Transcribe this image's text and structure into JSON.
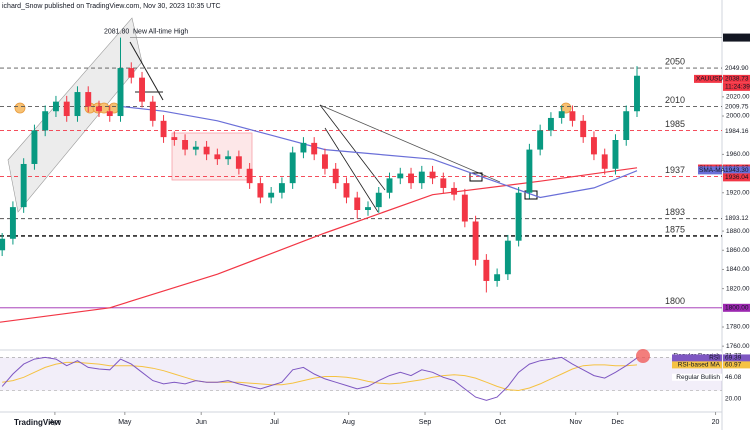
{
  "header": "ichard_Snow published on TradingView.com, Nov 30, 2023 10:35 UTC",
  "brand": "TradingView",
  "chart_data": {
    "type": "candlestick",
    "symbol": "XAUUSD",
    "countdown": "11:24:39",
    "x": [
      0,
      1,
      2,
      3,
      4,
      5,
      6,
      7,
      8,
      9,
      10,
      11,
      12,
      13,
      14,
      15,
      16,
      17,
      18,
      19,
      20,
      21,
      22,
      23,
      24,
      25,
      26,
      27,
      28,
      29,
      30,
      31,
      32,
      33,
      34,
      35,
      36,
      37,
      38,
      39,
      40,
      41,
      42,
      43,
      44,
      45,
      46,
      47,
      48,
      49,
      50,
      51,
      52,
      53,
      54,
      55,
      56,
      57,
      58,
      59
    ],
    "open": [
      1860,
      1872,
      1905,
      1950,
      1985,
      2005,
      2015,
      2000,
      2025,
      2010,
      2005,
      2000,
      2050,
      2040,
      2015,
      1995,
      1978,
      1975,
      1965,
      1968,
      1960,
      1955,
      1958,
      1945,
      1930,
      1915,
      1920,
      1930,
      1962,
      1972,
      1960,
      1945,
      1930,
      1915,
      1902,
      1905,
      1920,
      1935,
      1940,
      1930,
      1942,
      1935,
      1925,
      1918,
      1890,
      1850,
      1828,
      1835,
      1870,
      1920,
      1965,
      1985,
      1998,
      2005,
      1995,
      1978,
      1960,
      1945,
      1975,
      2005
    ],
    "high": [
      1878,
      1911,
      1956,
      1991,
      2011,
      2021,
      2021,
      2031,
      2031,
      2016,
      2011,
      2081.8,
      2056,
      2046,
      2021,
      2001,
      1984,
      1981,
      1974,
      1974,
      1966,
      1964,
      1964,
      1951,
      1936,
      1926,
      1936,
      1968,
      1978,
      1978,
      1966,
      1951,
      1936,
      1921,
      1911,
      1926,
      1941,
      1946,
      1946,
      1948,
      1948,
      1941,
      1931,
      1924,
      1896,
      1856,
      1841,
      1876,
      1926,
      1971,
      1991,
      2004,
      2011,
      2011,
      2001,
      1984,
      1966,
      1981,
      2011,
      2052
    ],
    "low": [
      1854,
      1866,
      1899,
      1944,
      1979,
      1999,
      1994,
      1994,
      2004,
      1999,
      1994,
      1994,
      2034,
      2009,
      1989,
      1972,
      1969,
      1959,
      1959,
      1954,
      1949,
      1949,
      1939,
      1924,
      1909,
      1909,
      1914,
      1924,
      1956,
      1954,
      1939,
      1924,
      1909,
      1893,
      1896,
      1899,
      1914,
      1929,
      1924,
      1924,
      1929,
      1919,
      1912,
      1884,
      1844,
      1816,
      1822,
      1829,
      1864,
      1914,
      1959,
      1979,
      1992,
      1989,
      1972,
      1954,
      1939,
      1939,
      1969,
      1999
    ],
    "close": [
      1872,
      1905,
      1950,
      1985,
      2005,
      2015,
      2000,
      2025,
      2010,
      2005,
      2000,
      2050,
      2040,
      2015,
      1995,
      1978,
      1975,
      1965,
      1968,
      1960,
      1955,
      1958,
      1945,
      1930,
      1915,
      1920,
      1930,
      1962,
      1972,
      1960,
      1945,
      1930,
      1915,
      1902,
      1905,
      1920,
      1935,
      1940,
      1930,
      1942,
      1935,
      1925,
      1918,
      1890,
      1850,
      1828,
      1835,
      1870,
      1920,
      1965,
      1985,
      1998,
      2005,
      1995,
      1978,
      1960,
      1945,
      1975,
      2005,
      2042
    ],
    "up_color": "#089981",
    "down_color": "#f23645",
    "lines": [
      {
        "color": "#f23645",
        "x": [
          -0.2,
          10,
          20,
          30,
          40,
          50,
          59
        ],
        "values": [
          1785,
          1800,
          1835,
          1878,
          1918,
          1932,
          1946
        ]
      },
      {
        "color": "#6a6fd8",
        "x": [
          11,
          15,
          20,
          25,
          30,
          35,
          40,
          45,
          50,
          55,
          59
        ],
        "values": [
          2010,
          2005,
          1995,
          1980,
          1965,
          1960,
          1955,
          1935,
          1915,
          1925,
          1943
        ]
      }
    ],
    "xlim": [
      -0.2,
      66.9
    ],
    "ylim": [
      1756,
      2121
    ],
    "xticks": [
      {
        "value": 4.9,
        "label": "Apr"
      },
      {
        "value": 11.4,
        "label": "May"
      },
      {
        "value": 18.5,
        "label": "Jun"
      },
      {
        "value": 25.3,
        "label": "Jul"
      },
      {
        "value": 32.2,
        "label": "Aug"
      },
      {
        "value": 39.3,
        "label": "Sep"
      },
      {
        "value": 46.3,
        "label": "Oct"
      },
      {
        "value": 53.3,
        "label": "Nov"
      },
      {
        "value": 57.2,
        "label": "Dec"
      },
      {
        "value": 66.3,
        "label": "20"
      }
    ],
    "yticks": [
      {
        "value": 1760,
        "label": "1760.00"
      },
      {
        "value": 1780,
        "label": "1780.00"
      },
      {
        "value": 1820,
        "label": "1820.00"
      },
      {
        "value": 1840,
        "label": "1840.00"
      },
      {
        "value": 1860,
        "label": "1860.00"
      },
      {
        "value": 1880,
        "label": "1880.00"
      },
      {
        "value": 1920,
        "label": "1920.00"
      },
      {
        "value": 1960,
        "label": "1960.00"
      },
      {
        "value": 2000,
        "label": "2000.00"
      },
      {
        "value": 2020,
        "label": "2020.00"
      }
    ],
    "levels": [
      {
        "value": 2050,
        "color": "#555555",
        "dash": true
      },
      {
        "value": 2010,
        "color": "#555555",
        "dash": true
      },
      {
        "value": 1985,
        "color": "#f23645",
        "dash": true
      },
      {
        "value": 1937,
        "color": "#f23645",
        "dash": true
      },
      {
        "value": 1893,
        "color": "#555555",
        "dash": true
      },
      {
        "value": 1875,
        "color": "#000000",
        "dash": true
      },
      {
        "value": 1800,
        "color": "#9c27b0",
        "dash": false
      }
    ],
    "ath": {
      "value": 2081.8,
      "label": "2081.80",
      "text": "New All-time High"
    },
    "price_tags": [
      {
        "value": 2082.26,
        "label": "2082.26",
        "bg": "#ffffff",
        "fg": "#131722"
      },
      {
        "value": 2081.82,
        "label": "2081.82",
        "bg": "#131722",
        "fg": "#ffffff"
      },
      {
        "value": 2049.9,
        "label": "2049.90",
        "bg": "#ffffff",
        "fg": "#131722"
      },
      {
        "value": 2038.73,
        "label": "2038.73",
        "bg": "#f23645",
        "fg": "#ffffff"
      },
      {
        "value": 2009.75,
        "label": "2009.75",
        "bg": "#ffffff",
        "fg": "#131722"
      },
      {
        "value": 1984.16,
        "label": "1984.16",
        "bg": "#ffffff",
        "fg": "#131722"
      },
      {
        "value": 1945.27,
        "label": "1945.27",
        "bg": "#f23645",
        "fg": "#ffffff",
        "tag": "SMA-MA"
      },
      {
        "value": 1943.3,
        "label": "1943.30",
        "bg": "#6a6fd8",
        "fg": "#ffffff",
        "tag": "SMA-MA"
      },
      {
        "value": 1936.04,
        "label": "1936.04",
        "bg": "#f23645",
        "fg": "#ffffff"
      },
      {
        "value": 1893.12,
        "label": "1893.12",
        "bg": "#ffffff",
        "fg": "#131722"
      },
      {
        "value": 1800,
        "label": "1800.00",
        "bg": "#9c27b0",
        "fg": "#ffffff"
      }
    ],
    "rsi": {
      "ylim": [
        4,
        79
      ],
      "band": [
        30,
        70
      ],
      "color": "#7e57c2",
      "values": [
        35,
        50,
        62,
        68,
        70,
        68,
        60,
        66,
        58,
        56,
        55,
        68,
        62,
        52,
        42,
        38,
        40,
        38,
        42,
        40,
        40,
        42,
        38,
        35,
        32,
        36,
        40,
        55,
        58,
        50,
        44,
        40,
        36,
        32,
        35,
        42,
        48,
        52,
        48,
        55,
        52,
        46,
        42,
        32,
        22,
        18,
        22,
        35,
        52,
        62,
        66,
        68,
        70,
        62,
        55,
        48,
        45,
        52,
        60,
        69.39
      ],
      "ma_color": "#f5c242",
      "ma": [
        40,
        42,
        46,
        52,
        58,
        62,
        64,
        64,
        63,
        62,
        60,
        60,
        60,
        59,
        57,
        54,
        50,
        46,
        42,
        40,
        40,
        40,
        40,
        39,
        38,
        37,
        37,
        39,
        42,
        45,
        47,
        47,
        46,
        44,
        41,
        39,
        38,
        39,
        41,
        43,
        46,
        48,
        49,
        48,
        45,
        40,
        35,
        31,
        30,
        33,
        38,
        44,
        50,
        56,
        60,
        61,
        61,
        60,
        60,
        60.97
      ],
      "tags": [
        {
          "value": 71.77,
          "text": "Regular Bearish",
          "label": "71.77",
          "bg": "#ffffff"
        },
        {
          "value": 69.39,
          "text": "RSI",
          "label": "69.39",
          "bg": "#7e57c2"
        },
        {
          "value": 60.97,
          "text": "RSI-based MA",
          "label": "60.97",
          "bg": "#f5c242"
        },
        {
          "value": 46.08,
          "text": "Regular Bullish",
          "label": "46.08",
          "bg": "#ffffff"
        },
        {
          "value": 20,
          "label": "20.00",
          "bg": "#ffffff"
        }
      ]
    }
  }
}
